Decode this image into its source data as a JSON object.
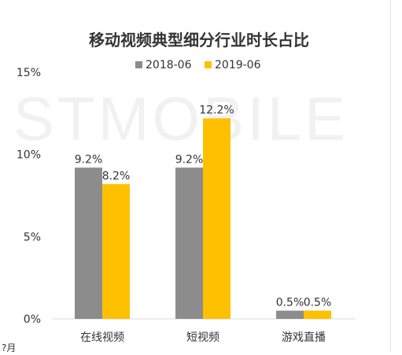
{
  "chart_data": {
    "type": "bar",
    "title": "移动视频典型细分行业时长占比",
    "watermark": "STMOBILE",
    "categories": [
      "在线视频",
      "短视频",
      "游戏直播"
    ],
    "series": [
      {
        "name": "2018-06",
        "values": [
          9.2,
          9.2,
          0.5
        ],
        "labels": [
          "9.2%",
          "9.2%",
          "0.5%"
        ],
        "color": "#8c8c8c"
      },
      {
        "name": "2019-06",
        "values": [
          8.2,
          12.2,
          0.5
        ],
        "labels": [
          "8.2%",
          "12.2%",
          "0.5%"
        ],
        "color": "#ffc000"
      }
    ],
    "ylim": [
      0,
      15
    ],
    "yticks": [
      0,
      5,
      10,
      15
    ],
    "ytick_labels": [
      "0%",
      "5%",
      "10%",
      "15%"
    ],
    "grid": false,
    "legend_position": "top-center"
  },
  "footer_fragment": "?月"
}
